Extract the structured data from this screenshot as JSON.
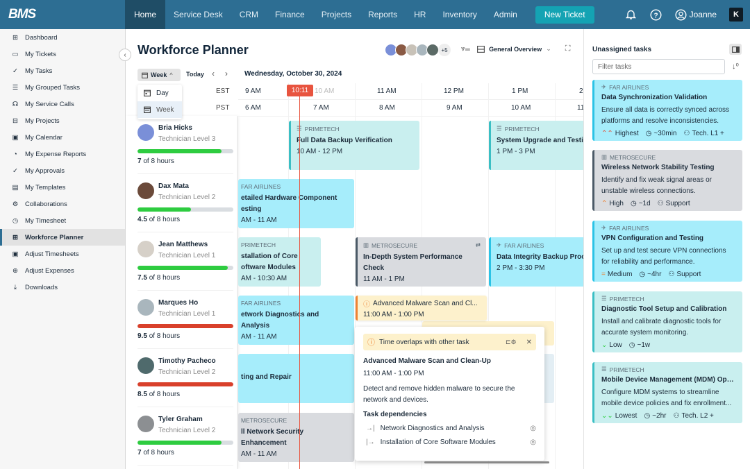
{
  "app": {
    "logo": "BMS"
  },
  "nav": {
    "items": [
      "Home",
      "Service Desk",
      "CRM",
      "Finance",
      "Projects",
      "Reports",
      "HR",
      "Inventory",
      "Admin"
    ],
    "active": "Home",
    "new_ticket": "New Ticket",
    "user": "Joanne"
  },
  "sidebar": {
    "items": [
      {
        "label": "Dashboard",
        "icon": "grid-icon"
      },
      {
        "label": "My Tickets",
        "icon": "ticket-icon"
      },
      {
        "label": "My Tasks",
        "icon": "check-circle-icon"
      },
      {
        "label": "My Grouped Tasks",
        "icon": "list-check-icon"
      },
      {
        "label": "My Service Calls",
        "icon": "headset-icon"
      },
      {
        "label": "My Projects",
        "icon": "briefcase-icon"
      },
      {
        "label": "My Calendar",
        "icon": "calendar-icon"
      },
      {
        "label": "My Expense Reports",
        "icon": "expense-icon"
      },
      {
        "label": "My Approvals",
        "icon": "check-circle-icon"
      },
      {
        "label": "My Templates",
        "icon": "template-icon"
      },
      {
        "label": "Collaborations",
        "icon": "gears-icon"
      },
      {
        "label": "My Timesheet",
        "icon": "clock-icon"
      },
      {
        "label": "Workforce Planner",
        "icon": "calendar-plus-icon"
      },
      {
        "label": "Adjust Timesheets",
        "icon": "calendar-gear-icon"
      },
      {
        "label": "Adjust Expenses",
        "icon": "search-dollar-icon"
      },
      {
        "label": "Downloads",
        "icon": "download-icon"
      }
    ],
    "active_index": 12
  },
  "planner": {
    "title": "Workforce Planner",
    "avatar_more": "+5",
    "view": "General Overview",
    "range_button": "Week",
    "today": "Today",
    "range_options": [
      "Day",
      "Week"
    ],
    "tz": [
      "EST",
      "PST"
    ],
    "date": "Wednesday, October 30, 2024",
    "now": "10:11",
    "est_hours": [
      "9 AM",
      "10 AM",
      "11 AM",
      "12 PM",
      "1 PM",
      "2"
    ],
    "pst_hours": [
      "6 AM",
      "7 AM",
      "8 AM",
      "9 AM",
      "10 AM",
      "11"
    ],
    "technicians": [
      {
        "name": "Bria Hicks",
        "level": "Technician Level 3",
        "hours": "7",
        "of": "of 8 hours",
        "pct": 88,
        "color": "#2ecc40"
      },
      {
        "name": "Dax Mata",
        "level": "Technician Level 2",
        "hours": "4.5",
        "of": "of 8 hours",
        "pct": 56,
        "color": "#2ecc40"
      },
      {
        "name": "Jean Matthews",
        "level": "Technician Level 1",
        "hours": "7.5",
        "of": "of 8 hours",
        "pct": 94,
        "color": "#2ecc40"
      },
      {
        "name": "Marques Ho",
        "level": "Technician Level 1",
        "hours": "9.5",
        "of": "of 8 hours",
        "pct": 100,
        "color": "#d9402b"
      },
      {
        "name": "Timothy Pacheco",
        "level": "Technician Level 2",
        "hours": "8.5",
        "of": "of 8 hours",
        "pct": 100,
        "color": "#d9402b"
      },
      {
        "name": "Tyler Graham",
        "level": "Technician Level 2",
        "hours": "7",
        "of": "of 8 hours",
        "pct": 88,
        "color": "#2ecc40"
      }
    ],
    "events": [
      {
        "company": "PRIMETECH",
        "title": "Full Data Backup Verification",
        "time": "10 AM - 12 PM"
      },
      {
        "company": "PRIMETECH",
        "title": "System Upgrade and Testing",
        "time": "1 PM - 3 PM"
      },
      {
        "company": "FAR AIRLINES",
        "title": "etailed Hardware Component esting",
        "time": "AM - 11 AM"
      },
      {
        "company": "PRIMETECH",
        "title": "stallation of Core oftware Modules",
        "time": "AM - 10:30 AM"
      },
      {
        "company": "METROSECURE",
        "title": "In-Depth System Performance Check",
        "time": "11 AM - 1 PM"
      },
      {
        "company": "FAR AIRLINES",
        "title": "Data Integrity Backup Process",
        "time": "2 PM - 3:30 PM"
      },
      {
        "company": "FAR AIRLINES",
        "title": "etwork Diagnostics and Analysis",
        "time": "AM - 11 AM"
      },
      {
        "company": "",
        "title": "Advanced Malware Scan and Cl...",
        "time": "11:00 AM - 1:00 PM"
      },
      {
        "company": "",
        "title": "ting and Repair",
        "time": ""
      },
      {
        "company": "METROSECURE",
        "title": "ll Network Security Enhancement",
        "time": "AM - 11 AM"
      }
    ],
    "popup": {
      "warning": "Time overlaps with other task",
      "title": "Advanced Malware Scan and Clean-Up",
      "time": "11:00 AM - 1:00 PM",
      "description": "Detect and remove hidden malware to secure the network and devices.",
      "deps_heading": "Task dependencies",
      "deps": [
        "Network Diagnostics and Analysis",
        "Installation of Core Software Modules"
      ]
    }
  },
  "unassigned": {
    "title": "Unassigned tasks",
    "filter_placeholder": "Filter tasks",
    "cards": [
      {
        "company": "FAR AIRLINES",
        "title": "Data Synchronization Validation",
        "desc": "Ensure all data is correctly synced across platforms and resolve inconsistencies.",
        "priority": "Highest",
        "priority_glyph": "⌃⌃",
        "duration": "~30min",
        "role": "Tech. L1 +",
        "bg": "#a6edfb",
        "border": "#2bc3e6",
        "pcolor": "#e2553d"
      },
      {
        "company": "METROSECURE",
        "title": "Wireless Network Stability Testing",
        "desc": "Identify and fix weak signal areas or unstable wireless connections.",
        "priority": "High",
        "priority_glyph": "⌃",
        "duration": "~1d",
        "role": "Support",
        "bg": "#d9dbdf",
        "border": "#4b5a67",
        "pcolor": "#ee8333"
      },
      {
        "company": "FAR AIRLINES",
        "title": "VPN Configuration and Testing",
        "desc": "Set up and test secure VPN connections for reliability and performance.",
        "priority": "Medium",
        "priority_glyph": "=",
        "duration": "~4hr",
        "role": "Support",
        "bg": "#a6edfb",
        "border": "#2bc3e6",
        "pcolor": "#ee8333"
      },
      {
        "company": "PRIMETECH",
        "title": "Diagnostic Tool Setup and Calibration",
        "desc": "Install and calibrate diagnostic tools for accurate system monitoring.",
        "priority": "Low",
        "priority_glyph": "⌄",
        "duration": "~1w",
        "role": "",
        "bg": "#c9efef",
        "border": "#3bbfc4",
        "pcolor": "#2ecc40"
      },
      {
        "company": "PRIMETECH",
        "title": "Mobile Device Management (MDM) Optimization",
        "desc": "Configure MDM systems to streamline mobile device policies and fix enrollment...",
        "priority": "Lowest",
        "priority_glyph": "⌄⌄",
        "duration": "~2hr",
        "role": "Tech. L2 +",
        "bg": "#c9efef",
        "border": "#3bbfc4",
        "pcolor": "#2ecc40"
      }
    ]
  }
}
